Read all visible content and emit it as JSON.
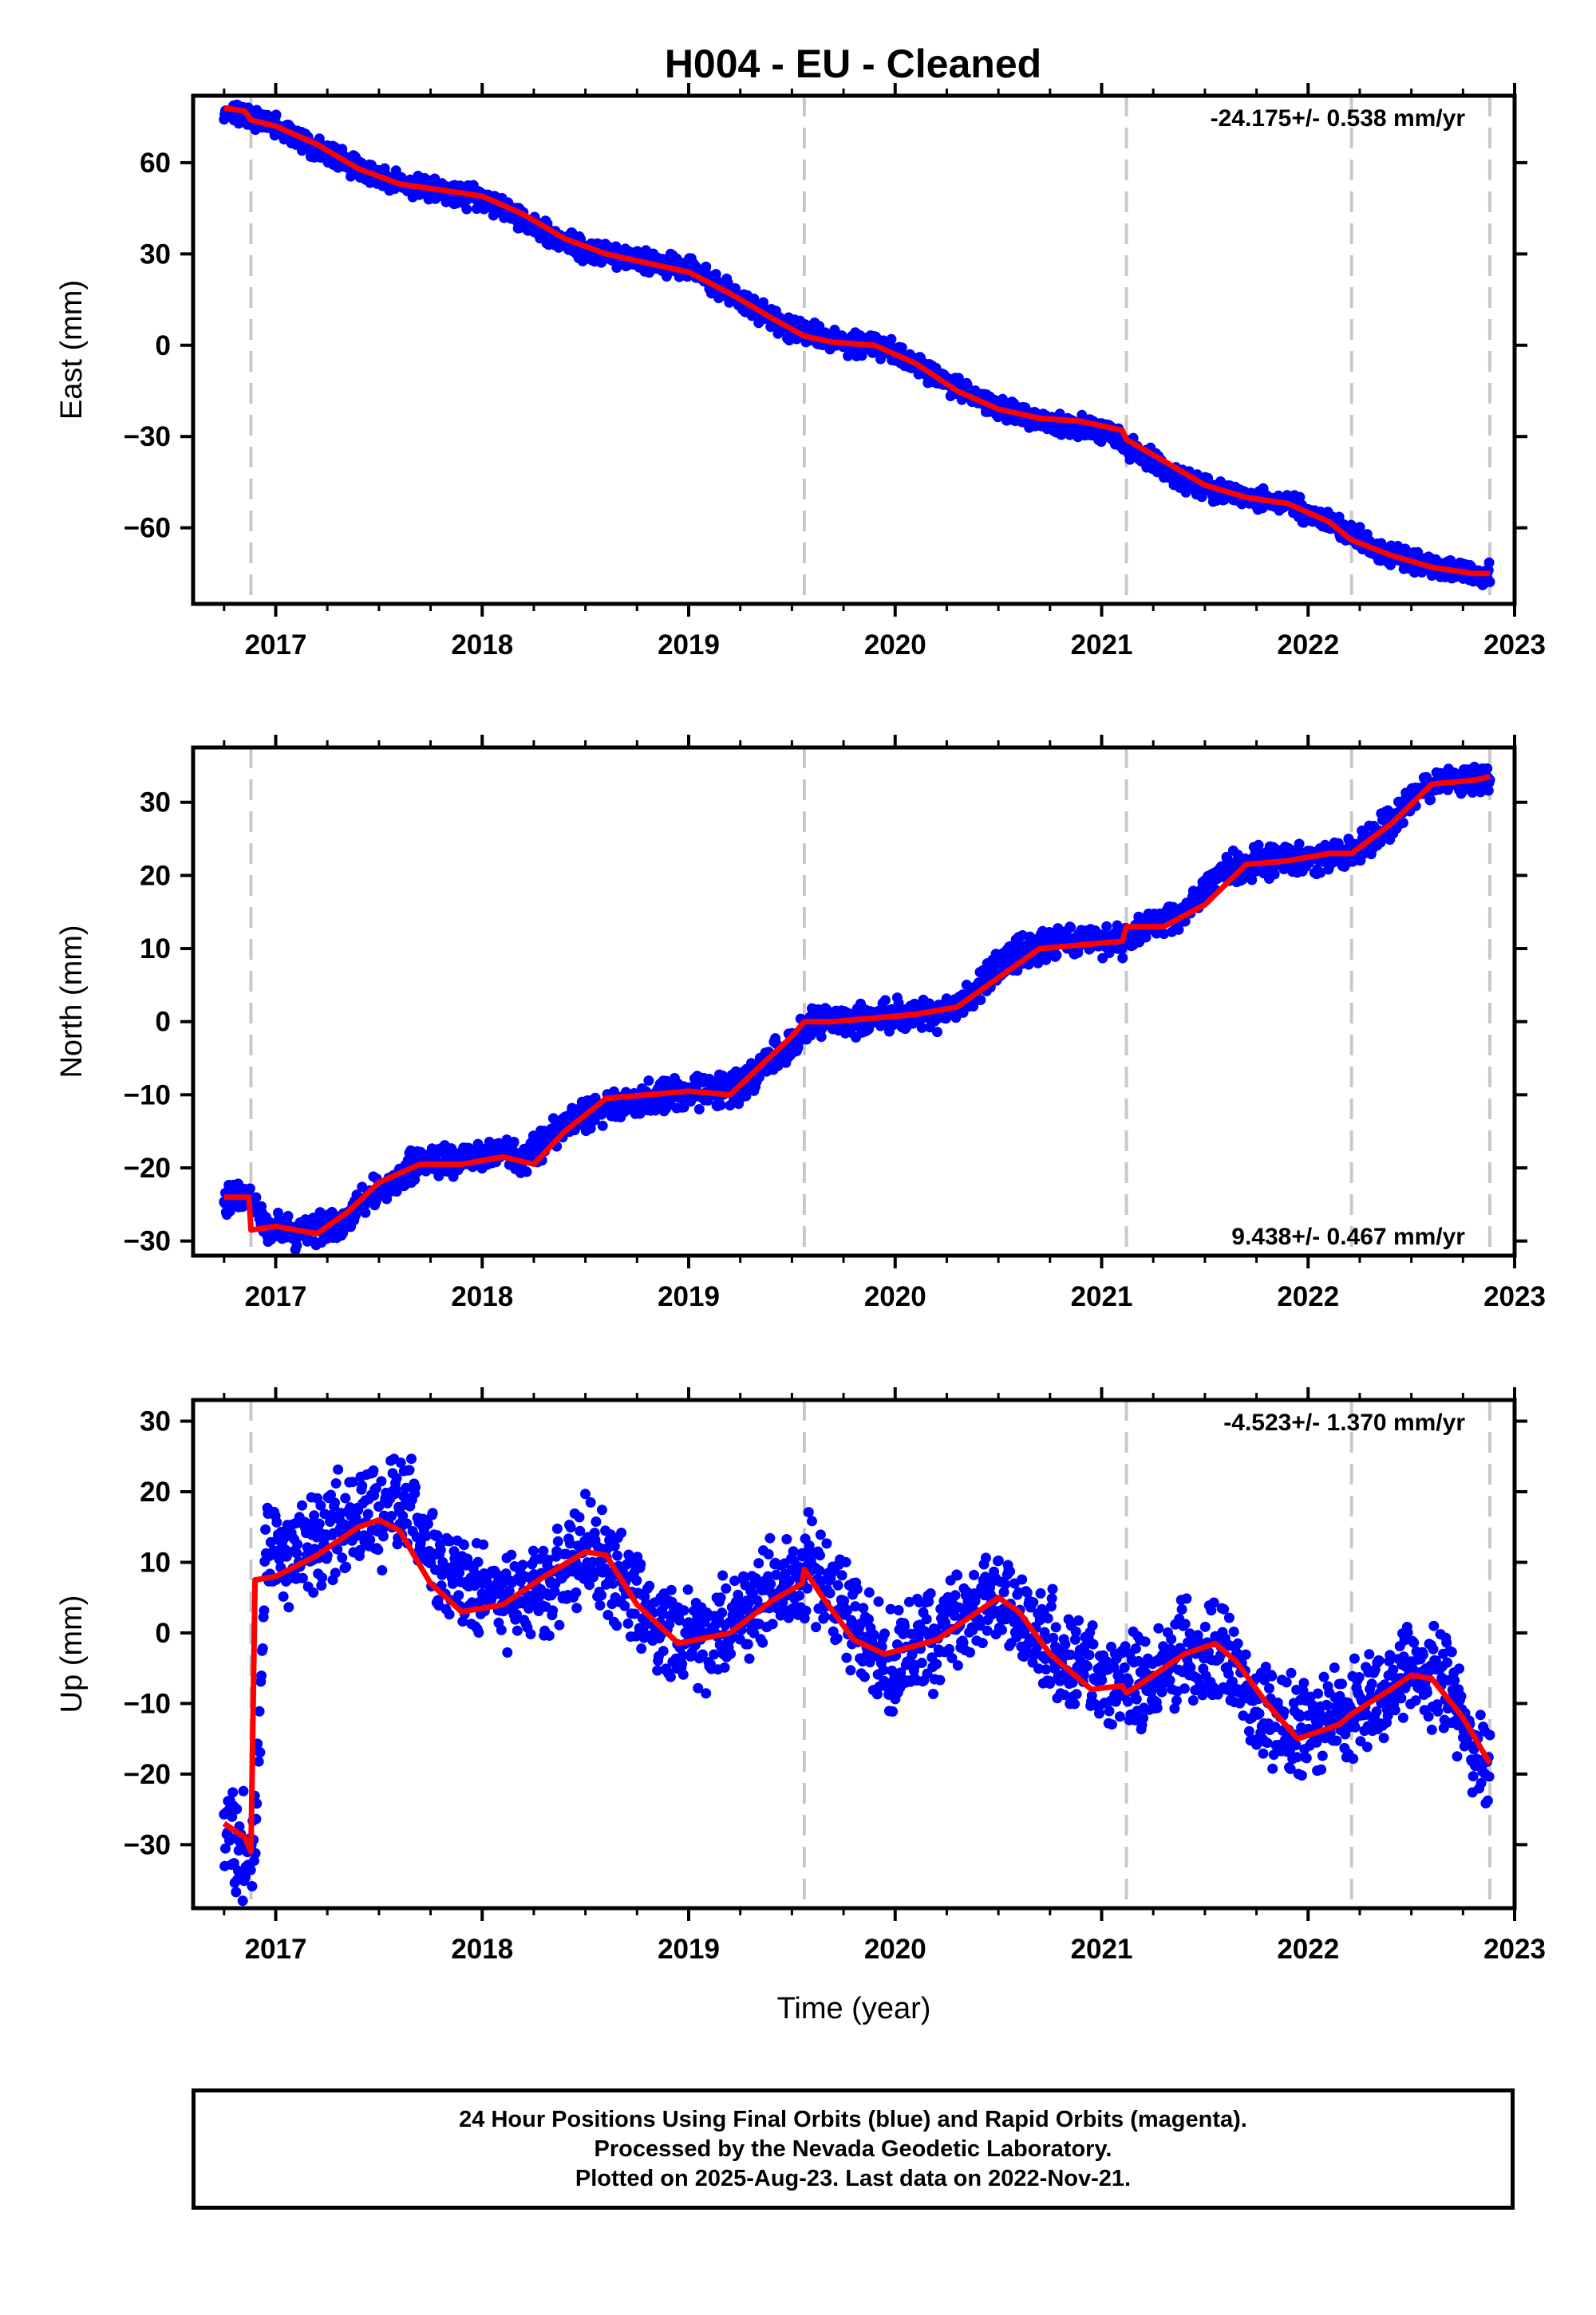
{
  "footer": {
    "line1": "24 Hour Positions Using Final Orbits (blue) and Rapid Orbits (magenta).",
    "line2": "Processed by the Nevada Geodetic Laboratory.",
    "line3": "Plotted on 2025-Aug-23. Last data on 2022-Nov-21."
  },
  "chart_data": [
    {
      "type": "scatter",
      "title": "H004  - EU - Cleaned",
      "xlabel": "",
      "ylabel": "East (mm)",
      "xlim": [
        2016.6,
        2023.0
      ],
      "ylim": [
        -85,
        82
      ],
      "xticks": [
        2017,
        2018,
        2019,
        2020,
        2021,
        2022,
        2023
      ],
      "yticks": [
        -60,
        -30,
        0,
        30,
        60
      ],
      "rate_label": "-24.175+/- 0.538 mm/yr",
      "rate_position": "top-right",
      "grid": false,
      "dashed_verticals": [
        2016.88,
        2019.56,
        2021.12,
        2022.21,
        2022.88
      ],
      "series": [
        {
          "color": "#0000ff",
          "marker": "dot",
          "x": [
            2016.75,
            2016.85,
            2017.0,
            2017.25,
            2017.5,
            2017.75,
            2018.0,
            2018.2,
            2018.5,
            2018.75,
            2019.0,
            2019.25,
            2019.5,
            2019.75,
            2020.0,
            2020.25,
            2020.5,
            2020.75,
            2021.0,
            2021.15,
            2021.4,
            2021.6,
            2021.9,
            2022.1,
            2022.3,
            2022.55,
            2022.75,
            2022.88
          ],
          "y": [
            77,
            76,
            72,
            63,
            55,
            51,
            48,
            41,
            31,
            28,
            25,
            15,
            5,
            1,
            -2,
            -12,
            -21,
            -25,
            -28,
            -34,
            -45,
            -49,
            -52,
            -58,
            -66,
            -72,
            -75,
            -75
          ]
        },
        {
          "color": "#ff0000",
          "marker": "line",
          "x": [
            2016.75,
            2016.85,
            2016.88,
            2017.0,
            2017.2,
            2017.4,
            2017.6,
            2017.8,
            2018.0,
            2018.2,
            2018.4,
            2018.6,
            2018.8,
            2019.0,
            2019.2,
            2019.4,
            2019.56,
            2019.7,
            2019.9,
            2020.1,
            2020.3,
            2020.5,
            2020.7,
            2020.9,
            2021.1,
            2021.12,
            2021.3,
            2021.5,
            2021.7,
            2021.9,
            2022.1,
            2022.21,
            2022.4,
            2022.6,
            2022.8,
            2022.88
          ],
          "y": [
            78,
            77,
            74,
            72,
            66,
            58,
            53,
            51,
            49,
            43,
            35,
            30,
            27,
            24,
            17,
            9,
            3,
            1,
            0,
            -6,
            -15,
            -21,
            -24,
            -25,
            -28,
            -31,
            -38,
            -46,
            -50,
            -52,
            -58,
            -64,
            -69,
            -73,
            -75,
            -75
          ]
        }
      ]
    },
    {
      "type": "scatter",
      "title": "",
      "xlabel": "",
      "ylabel": "North (mm)",
      "xlim": [
        2016.6,
        2023.0
      ],
      "ylim": [
        -32,
        37.5
      ],
      "xticks": [
        2017,
        2018,
        2019,
        2020,
        2021,
        2022,
        2023
      ],
      "yticks": [
        -30,
        -20,
        -10,
        0,
        10,
        20,
        30
      ],
      "rate_label": "9.438+/- 0.467 mm/yr",
      "rate_position": "bottom-right",
      "grid": false,
      "dashed_verticals": [
        2016.88,
        2019.56,
        2021.12,
        2022.21,
        2022.88
      ],
      "series": [
        {
          "color": "#0000ff",
          "marker": "dot",
          "x": [
            2016.75,
            2016.87,
            2016.95,
            2017.1,
            2017.3,
            2017.5,
            2017.7,
            2017.9,
            2018.1,
            2018.2,
            2018.45,
            2018.7,
            2019.0,
            2019.25,
            2019.45,
            2019.6,
            2019.8,
            2020.0,
            2020.2,
            2020.35,
            2020.55,
            2020.8,
            2021.0,
            2021.1,
            2021.2,
            2021.4,
            2021.6,
            2021.8,
            2022.0,
            2022.2,
            2022.35,
            2022.55,
            2022.75,
            2022.88
          ],
          "y": [
            -24,
            -24,
            -28,
            -29,
            -28,
            -23,
            -19,
            -19,
            -18,
            -19,
            -13,
            -11,
            -10,
            -9,
            -4,
            0,
            0,
            1,
            1,
            3,
            9,
            11,
            11,
            11,
            13,
            15,
            21,
            22,
            22,
            23,
            26,
            32,
            33,
            33
          ]
        },
        {
          "color": "#ff0000",
          "marker": "line",
          "x": [
            2016.75,
            2016.87,
            2016.88,
            2017.0,
            2017.2,
            2017.35,
            2017.5,
            2017.7,
            2017.9,
            2018.1,
            2018.25,
            2018.4,
            2018.6,
            2018.8,
            2019.0,
            2019.2,
            2019.35,
            2019.5,
            2019.56,
            2019.7,
            2019.9,
            2020.1,
            2020.3,
            2020.5,
            2020.7,
            2020.9,
            2021.1,
            2021.12,
            2021.3,
            2021.5,
            2021.7,
            2021.9,
            2022.1,
            2022.21,
            2022.4,
            2022.6,
            2022.8,
            2022.88
          ],
          "y": [
            -24,
            -24,
            -28.5,
            -28,
            -29,
            -26,
            -22,
            -19.5,
            -19.5,
            -18.5,
            -19.5,
            -15,
            -10.5,
            -10,
            -9.5,
            -10,
            -6,
            -2,
            0,
            0,
            0.5,
            1,
            2,
            6,
            10,
            10.5,
            11,
            13,
            13,
            16,
            21.5,
            22,
            23,
            23,
            27,
            32.5,
            33,
            33.5
          ]
        }
      ]
    },
    {
      "type": "scatter",
      "title": "",
      "xlabel": "Time (year)",
      "ylabel": "Up (mm)",
      "xlim": [
        2016.6,
        2023.0
      ],
      "ylim": [
        -39,
        33
      ],
      "xticks": [
        2017,
        2018,
        2019,
        2020,
        2021,
        2022,
        2023
      ],
      "yticks": [
        -30,
        -20,
        -10,
        0,
        10,
        20,
        30
      ],
      "rate_label": "-4.523+/- 1.370 mm/yr",
      "rate_position": "top-right",
      "grid": false,
      "dashed_verticals": [
        2016.88,
        2019.56,
        2021.12,
        2022.21,
        2022.88
      ],
      "series": [
        {
          "color": "#0000ff",
          "marker": "dot",
          "x": [
            2016.75,
            2016.8,
            2016.85,
            2016.9,
            2016.95,
            2017.1,
            2017.3,
            2017.5,
            2017.65,
            2017.8,
            2018.0,
            2018.2,
            2018.4,
            2018.5,
            2018.7,
            2018.9,
            2019.1,
            2019.3,
            2019.5,
            2019.6,
            2019.8,
            2020.0,
            2020.2,
            2020.45,
            2020.6,
            2020.8,
            2021.0,
            2021.2,
            2021.4,
            2021.55,
            2021.7,
            2021.9,
            2022.1,
            2022.3,
            2022.5,
            2022.65,
            2022.8,
            2022.88
          ],
          "y": [
            -27,
            -29,
            -31,
            -30,
            12,
            11,
            15,
            17,
            18,
            10,
            6,
            5,
            8,
            12,
            6,
            0,
            -1,
            4,
            8,
            10,
            0,
            -4,
            -1,
            5,
            3,
            -3,
            -6,
            -7,
            -3,
            -2,
            -8,
            -14,
            -13,
            -9,
            -6,
            -6,
            -16,
            -19
          ]
        },
        {
          "color": "#ff0000",
          "marker": "line",
          "x": [
            2016.75,
            2016.85,
            2016.88,
            2016.9,
            2017.0,
            2017.2,
            2017.4,
            2017.5,
            2017.6,
            2017.75,
            2017.9,
            2018.1,
            2018.3,
            2018.5,
            2018.6,
            2018.75,
            2018.95,
            2019.2,
            2019.4,
            2019.55,
            2019.56,
            2019.65,
            2019.8,
            2019.95,
            2020.2,
            2020.4,
            2020.5,
            2020.6,
            2020.75,
            2020.95,
            2021.1,
            2021.12,
            2021.2,
            2021.4,
            2021.55,
            2021.65,
            2021.8,
            2021.95,
            2022.15,
            2022.21,
            2022.4,
            2022.5,
            2022.6,
            2022.75,
            2022.88
          ],
          "y": [
            -27,
            -29,
            -31,
            7.5,
            8,
            11,
            15,
            16,
            14.5,
            7,
            3,
            4,
            8,
            11.5,
            11,
            4,
            -1.5,
            0,
            4.5,
            7,
            9,
            5,
            -1,
            -3,
            -1,
            3,
            5,
            3,
            -3,
            -8,
            -7.5,
            -8.5,
            -7,
            -3,
            -1.5,
            -4,
            -10,
            -15,
            -13,
            -11.5,
            -8,
            -6,
            -6.5,
            -12,
            -18.5
          ]
        }
      ]
    }
  ]
}
